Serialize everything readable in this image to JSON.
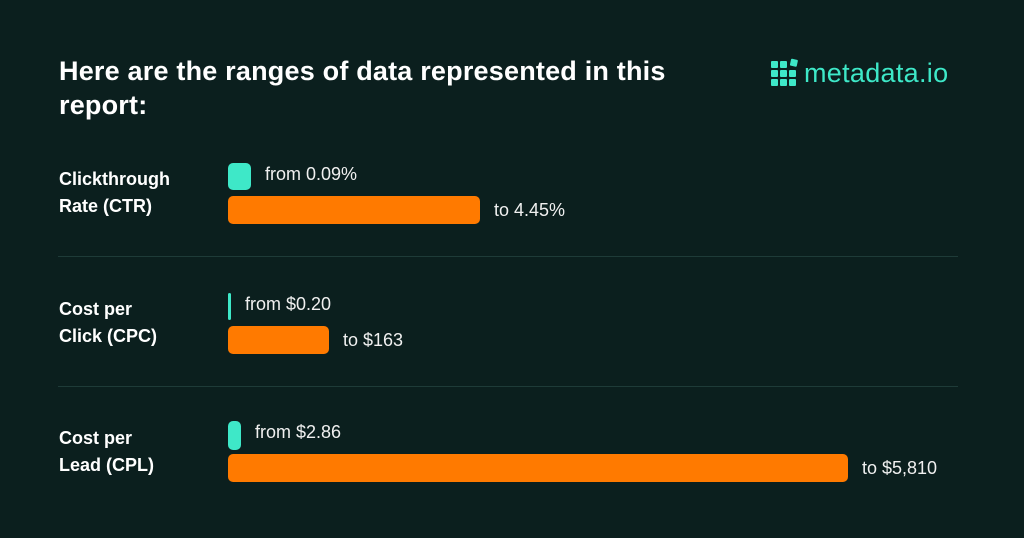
{
  "title": "Here are the ranges of data represented in this report:",
  "logo": {
    "text": "metadata.io"
  },
  "colors": {
    "background": "#0b1f1e",
    "min": "#3ee8c8",
    "max": "#ff7a00"
  },
  "chart_data": {
    "type": "bar",
    "title": "Here are the ranges of data represented in this report:",
    "categories": [
      "Clickthrough Rate (CTR)",
      "Cost per Click (CPC)",
      "Cost per Lead (CPL)"
    ],
    "series": [
      {
        "name": "from",
        "values": [
          0.09,
          0.2,
          2.86
        ]
      },
      {
        "name": "to",
        "values": [
          4.45,
          163,
          5810
        ]
      }
    ],
    "rows": [
      {
        "label_line1": "Clickthrough",
        "label_line2": "Rate (CTR)",
        "from_label": "from 0.09%",
        "to_label": "to 4.45%",
        "from": 0.09,
        "to": 4.45,
        "unit": "%"
      },
      {
        "label_line1": "Cost per",
        "label_line2": "Click (CPC)",
        "from_label": "from $0.20",
        "to_label": "to $163",
        "from": 0.2,
        "to": 163,
        "unit": "$"
      },
      {
        "label_line1": "Cost per",
        "label_line2": "Lead (CPL)",
        "from_label": "from $2.86",
        "to_label": "to $5,810",
        "from": 2.86,
        "to": 5810,
        "unit": "$"
      }
    ]
  }
}
